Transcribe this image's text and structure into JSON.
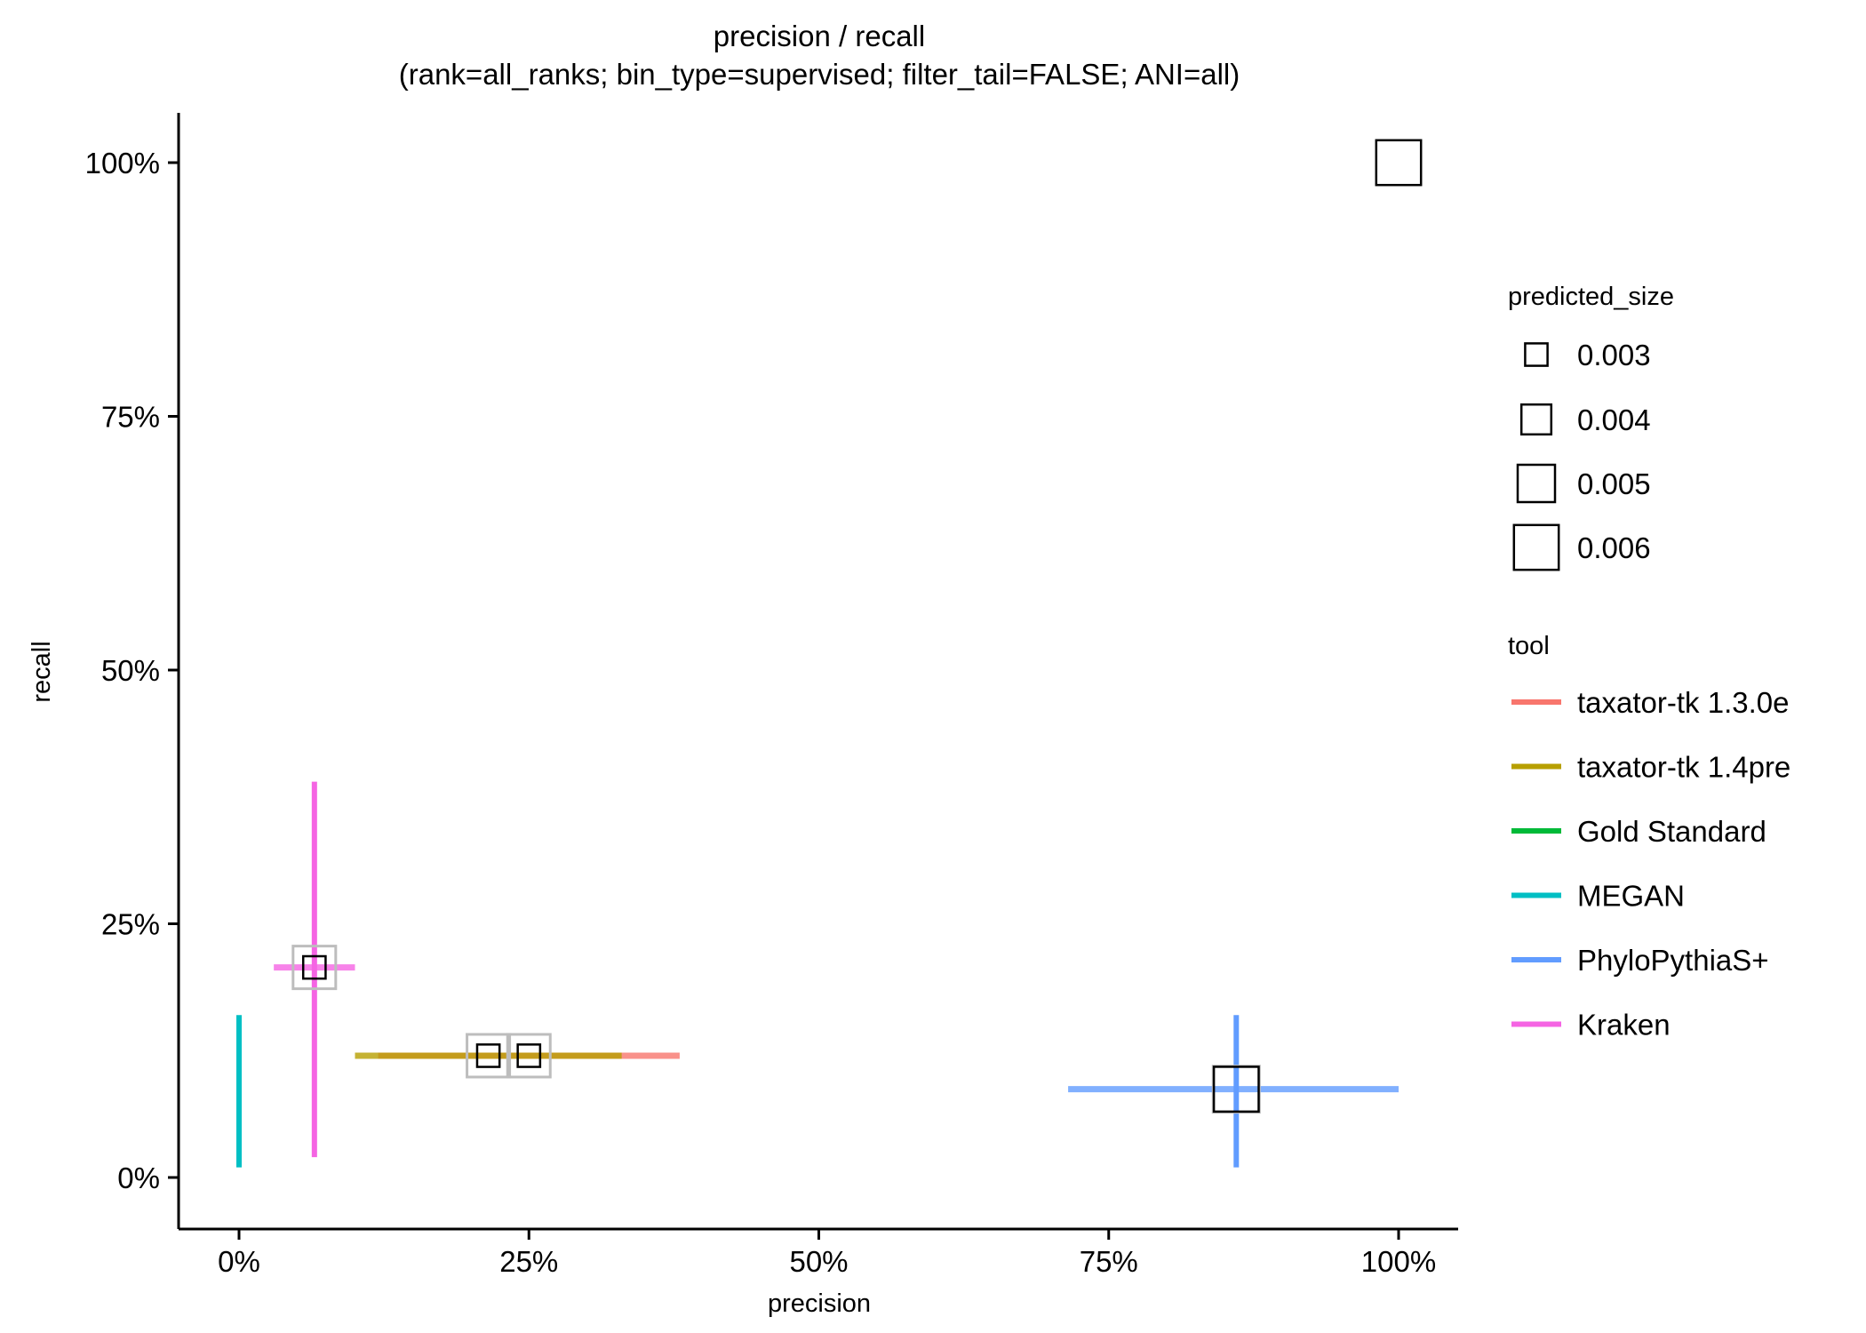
{
  "chart_data": {
    "type": "scatter",
    "title": "precision / recall",
    "subtitle": "(rank=all_ranks; bin_type=supervised; filter_tail=FALSE; ANI=all)",
    "xlabel": "precision",
    "ylabel": "recall",
    "xlim": [
      -0.05,
      1.05
    ],
    "ylim": [
      -0.05,
      1.05
    ],
    "x_ticks": [
      0,
      0.25,
      0.5,
      0.75,
      1.0
    ],
    "x_tick_labels": [
      "0%",
      "25%",
      "50%",
      "75%",
      "100%"
    ],
    "y_ticks": [
      0,
      0.25,
      0.5,
      0.75,
      1.0
    ],
    "y_tick_labels": [
      "0%",
      "25%",
      "50%",
      "75%",
      "100%"
    ],
    "grid": false,
    "legend_position": "right",
    "size_legend": {
      "title": "predicted_size",
      "entries": [
        {
          "label": "0.003",
          "value": 0.003
        },
        {
          "label": "0.004",
          "value": 0.004
        },
        {
          "label": "0.005",
          "value": 0.005
        },
        {
          "label": "0.006",
          "value": 0.006
        }
      ]
    },
    "tool_legend": {
      "title": "tool",
      "entries": [
        {
          "label": "taxator-tk 1.3.0e",
          "color": "#F8766D"
        },
        {
          "label": "taxator-tk 1.4pre",
          "color": "#B79F00"
        },
        {
          "label": "Gold Standard",
          "color": "#00BA38"
        },
        {
          "label": "MEGAN",
          "color": "#00BFC4"
        },
        {
          "label": "PhyloPythiaS+",
          "color": "#619CFF"
        },
        {
          "label": "Kraken",
          "color": "#F564E3"
        }
      ]
    },
    "series": [
      {
        "name": "taxator-tk 1.3.0e",
        "color": "#F8766D",
        "precision": 0.25,
        "recall": 0.12,
        "precision_range": [
          0.12,
          0.38
        ],
        "predicted_size": 0.003
      },
      {
        "name": "taxator-tk 1.4pre",
        "color": "#B79F00",
        "precision": 0.215,
        "recall": 0.12,
        "precision_range": [
          0.1,
          0.33
        ],
        "predicted_size": 0.003
      },
      {
        "name": "Kraken",
        "color": "#F564E3",
        "precision": 0.065,
        "recall": 0.207,
        "precision_range": [
          0.03,
          0.1
        ],
        "recall_range": [
          0.02,
          0.39
        ],
        "predicted_size": 0.003
      },
      {
        "name": "MEGAN",
        "color": "#00BFC4",
        "precision": 0.0,
        "recall_range": [
          0.01,
          0.16
        ]
      },
      {
        "name": "PhyloPythiaS+",
        "color": "#619CFF",
        "precision": 0.86,
        "recall": 0.087,
        "precision_range": [
          0.715,
          1.0
        ],
        "recall_range": [
          0.01,
          0.16
        ],
        "predicted_size": 0.006
      },
      {
        "name": "Gold Standard",
        "color": "#00BA38",
        "precision": 1.0,
        "recall": 1.0,
        "predicted_size": 0.006
      }
    ]
  }
}
